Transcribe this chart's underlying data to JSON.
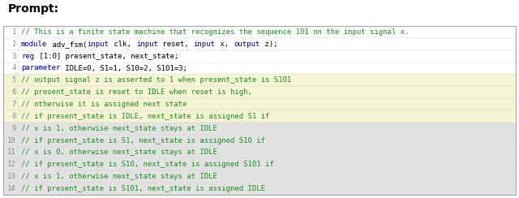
{
  "title": "Prompt:",
  "lines": [
    {
      "num": 1,
      "segments": [
        {
          "text": "// This is a finite state machine that recognizes the sequence 101 on the input signal x.",
          "color": "#228B22"
        }
      ],
      "bg": "#ffffff"
    },
    {
      "num": 2,
      "segments": [
        {
          "text": "module",
          "color": "#00008B"
        },
        {
          "text": " adv_fsm(",
          "color": "#000000"
        },
        {
          "text": "input",
          "color": "#00008B"
        },
        {
          "text": " clk, ",
          "color": "#000000"
        },
        {
          "text": "input",
          "color": "#00008B"
        },
        {
          "text": " reset, ",
          "color": "#000000"
        },
        {
          "text": "input",
          "color": "#00008B"
        },
        {
          "text": " x, ",
          "color": "#000000"
        },
        {
          "text": "output",
          "color": "#00008B"
        },
        {
          "text": " z);",
          "color": "#000000"
        }
      ],
      "bg": "#ffffff"
    },
    {
      "num": 3,
      "segments": [
        {
          "text": "reg",
          "color": "#00008B"
        },
        {
          "text": " [1:0] present_state, next_state;",
          "color": "#000000"
        }
      ],
      "bg": "#ffffff"
    },
    {
      "num": 4,
      "segments": [
        {
          "text": "parameter",
          "color": "#00008B"
        },
        {
          "text": " IDLE=0, S1=1, S10=2, S101=3;",
          "color": "#000000"
        }
      ],
      "bg": "#ffffff"
    },
    {
      "num": 5,
      "segments": [
        {
          "text": "// output signal z is asserted to 1 when present_state is S101",
          "color": "#228B22"
        }
      ],
      "bg": "#f5f5d5"
    },
    {
      "num": 6,
      "segments": [
        {
          "text": "// present_state is reset to IDLE when reset is high,",
          "color": "#228B22"
        }
      ],
      "bg": "#f5f5d5"
    },
    {
      "num": 7,
      "segments": [
        {
          "text": "// otherwise it is assigned next state",
          "color": "#228B22"
        }
      ],
      "bg": "#f5f5d5"
    },
    {
      "num": 8,
      "segments": [
        {
          "text": "// if present_state is IDLE, next_state is assigned S1 if",
          "color": "#228B22"
        }
      ],
      "bg": "#f5f5d5"
    },
    {
      "num": 9,
      "segments": [
        {
          "text": "// x is 1, otherwise next_state stays at IDLE",
          "color": "#228B22"
        }
      ],
      "bg": "#e2e2e2"
    },
    {
      "num": 10,
      "segments": [
        {
          "text": "// if present_state is S1, next_state is assigned S10 if",
          "color": "#228B22"
        }
      ],
      "bg": "#e2e2e2"
    },
    {
      "num": 11,
      "segments": [
        {
          "text": "// x is 0, otherwise next_state stays at IDLE",
          "color": "#228B22"
        }
      ],
      "bg": "#e2e2e2"
    },
    {
      "num": 12,
      "segments": [
        {
          "text": "// if present_state is S10, next_state is assigned S101 if",
          "color": "#228B22"
        }
      ],
      "bg": "#e2e2e2"
    },
    {
      "num": 13,
      "segments": [
        {
          "text": "// x is 1, otherwise next_state stays at IDLE",
          "color": "#228B22"
        }
      ],
      "bg": "#e2e2e2"
    },
    {
      "num": 14,
      "segments": [
        {
          "text": "// if present_state is S101, next_state is assigned IDLE",
          "color": "#228B22"
        }
      ],
      "bg": "#e2e2e2"
    }
  ],
  "code_font_size": 6.5,
  "line_num_color": "#888888",
  "title_fontsize": 10,
  "fig_bg": "#ffffff",
  "border_color": "#aaaaaa",
  "fig_width": 6.4,
  "fig_height": 2.44,
  "dpi": 100
}
